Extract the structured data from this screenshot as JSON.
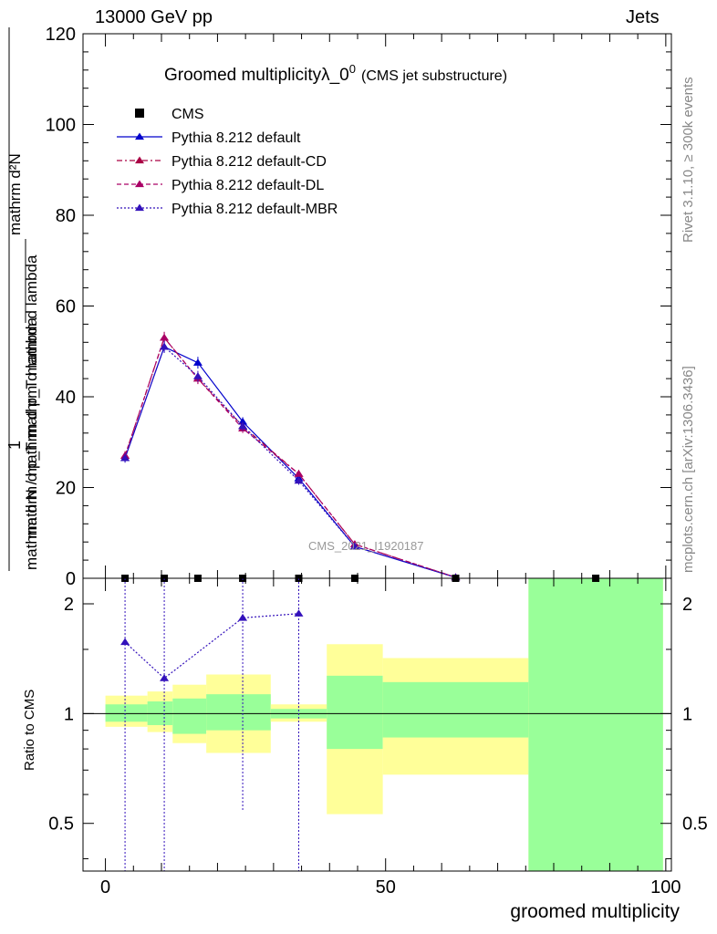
{
  "header": {
    "left": "13000 GeV pp",
    "right": "Jets"
  },
  "side_labels": {
    "rivet": "Rivet 3.1.10, ≥ 300k events",
    "mcplots": "mcplots.cern.ch [arXiv:1306.3436]"
  },
  "watermark": "CMS_2021_I1920187",
  "colors": {
    "data": "#000000",
    "default": "#0000cc",
    "cd": "#aa0044",
    "dl": "#aa0066",
    "mbr": "#3311bb",
    "band_inner": "#99ff99",
    "band_outer": "#ffff99"
  },
  "chart_data": [
    {
      "type": "line",
      "title_main": "Groomed multiplicityλ_0",
      "title_sup": "0",
      "title_note": "(CMS jet substructure)",
      "ylabel_top": "1",
      "ylabel_bottom": "mathrm d N / mathrm d p_T mathrm d lambda",
      "ylabel_num": "mathrm d²N",
      "ylabel_den": "mathrm d p_T mathrm d lambda",
      "xlim": [
        -4,
        101
      ],
      "ylim": [
        0,
        120
      ],
      "yticks": [
        0,
        20,
        40,
        60,
        80,
        100,
        120
      ],
      "ytick_labels": [
        "0",
        "20",
        "40",
        "60",
        "80",
        "100",
        "120"
      ],
      "legend_position": "top-left",
      "cms_points": {
        "name": "CMS",
        "x": [
          3.5,
          10.5,
          16.5,
          24.5,
          34.5,
          44.5,
          62.5,
          87.5
        ],
        "y": [
          0,
          0,
          0,
          0,
          0,
          0,
          0,
          0
        ]
      },
      "series": [
        {
          "name": "Pythia 8.212 default",
          "key": "default",
          "style": "solid",
          "x": [
            3.5,
            10.5,
            16.5,
            24.5,
            34.5,
            44.5,
            62.5
          ],
          "y": [
            26.5,
            51,
            47.5,
            34.5,
            22,
            7,
            0.2
          ],
          "err": [
            1,
            1.3,
            1.3,
            1,
            0.9,
            0.5,
            0.1
          ]
        },
        {
          "name": "Pythia 8.212 default-CD",
          "key": "cd",
          "style": "dashdot",
          "x": [
            3.5,
            10.5,
            16.5,
            24.5,
            34.5,
            44.5,
            62.5
          ],
          "y": [
            27,
            53,
            44,
            33.5,
            23,
            7.5,
            0.2
          ],
          "err": [
            1,
            1.3,
            1.2,
            1,
            0.9,
            0.5,
            0.1
          ]
        },
        {
          "name": "Pythia 8.212 default-DL",
          "key": "dl",
          "style": "dashed",
          "x": [
            3.5,
            10.5,
            16.5,
            24.5,
            34.5,
            44.5,
            62.5
          ],
          "y": [
            27,
            53,
            44,
            33,
            23,
            7.5,
            0.2
          ],
          "err": [
            1,
            1.3,
            1.2,
            1,
            0.9,
            0.5,
            0.1
          ]
        },
        {
          "name": "Pythia 8.212 default-MBR",
          "key": "mbr",
          "style": "dotted",
          "x": [
            3.5,
            10.5,
            16.5,
            24.5,
            34.5,
            44.5,
            62.5
          ],
          "y": [
            26.5,
            51,
            44.5,
            33.5,
            21.5,
            7,
            0.2
          ],
          "err": [
            1,
            1.3,
            1.2,
            1,
            0.9,
            0.5,
            0.1
          ]
        }
      ]
    },
    {
      "type": "line",
      "ylabel": "Ratio to CMS",
      "xlabel": "groomed multiplicity",
      "xlim": [
        -4,
        101
      ],
      "ylim": [
        0.37,
        2.35
      ],
      "yscale": "log",
      "yticks": [
        0.5,
        1,
        2
      ],
      "ytick_labels": [
        "0.5",
        "1",
        "2"
      ],
      "xticks": [
        0,
        50,
        100
      ],
      "xtick_labels": [
        "0",
        "50",
        "100"
      ],
      "bands": [
        {
          "x0": 0,
          "x1": 7.5,
          "inner": [
            0.95,
            1.06
          ],
          "outer": [
            0.92,
            1.12
          ]
        },
        {
          "x0": 7.5,
          "x1": 12,
          "inner": [
            0.93,
            1.08
          ],
          "outer": [
            0.89,
            1.15
          ]
        },
        {
          "x0": 12,
          "x1": 18,
          "inner": [
            0.88,
            1.1
          ],
          "outer": [
            0.83,
            1.2
          ]
        },
        {
          "x0": 18,
          "x1": 29.5,
          "inner": [
            0.9,
            1.13
          ],
          "outer": [
            0.78,
            1.28
          ]
        },
        {
          "x0": 29.5,
          "x1": 39.5,
          "inner": [
            0.97,
            1.03
          ],
          "outer": [
            0.95,
            1.06
          ]
        },
        {
          "x0": 39.5,
          "x1": 49.5,
          "inner": [
            0.8,
            1.27
          ],
          "outer": [
            0.53,
            1.55
          ]
        },
        {
          "x0": 49.5,
          "x1": 75.5,
          "inner": [
            0.86,
            1.22
          ],
          "outer": [
            0.68,
            1.42
          ]
        },
        {
          "x0": 75.5,
          "x1": 99.5,
          "inner": [
            0.37,
            2.35
          ],
          "outer": [
            0.37,
            2.35
          ]
        }
      ],
      "mbr_ratio": {
        "name": "Pythia 8.212 default-MBR",
        "x": [
          3.5,
          10.5,
          24.5,
          34.5
        ],
        "y": [
          1.57,
          1.25,
          1.83,
          1.88
        ],
        "err_low": [
          0.37,
          0.37,
          0.54,
          0.37
        ]
      }
    }
  ]
}
